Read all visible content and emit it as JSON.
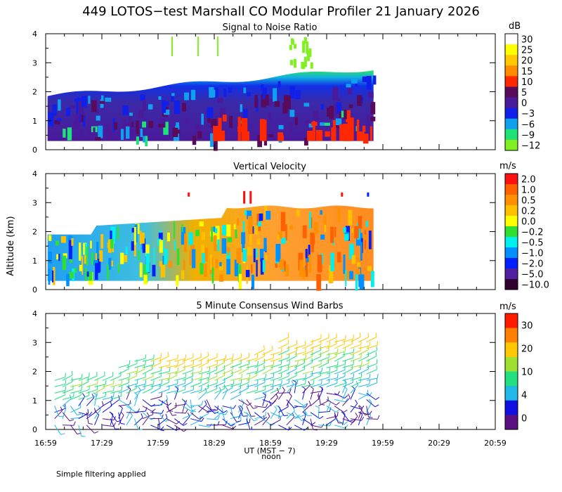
{
  "title": "449 LOTOS−test Marshall CO Modular Profiler 21 January 2026",
  "ylabel": "Altitude (km)",
  "xlabel": "UT  (MST − 7)",
  "xlabel2": "noon",
  "note": "Simple filtering applied",
  "x_ticks": [
    "16:59",
    "17:29",
    "17:59",
    "18:29",
    "18:59",
    "19:29",
    "19:59",
    "20:29",
    "20:59"
  ],
  "chart_data": [
    {
      "type": "heatmap",
      "title": "Signal to Noise Ratio",
      "colorbar_unit": "dB",
      "colorbar_labels": [
        "30",
        "25",
        "20",
        "15",
        "10",
        "5",
        "0",
        "−3",
        "−6",
        "−9",
        "−12"
      ],
      "colorbar_colors": [
        "#ffffff",
        "#ffff00",
        "#ffc800",
        "#ff8c00",
        "#ff2800",
        "#5a0a5a",
        "#4a1a9a",
        "#1020e8",
        "#10a0f0",
        "#20e078",
        "#80f020"
      ],
      "ylim": [
        0,
        4
      ],
      "yticks": [
        "0",
        "1",
        "2",
        "3",
        "4"
      ],
      "xlim": [
        "16:59",
        "20:59"
      ],
      "data_time_range": [
        "17:00",
        "19:54"
      ],
      "data_altitude_range": [
        0.3,
        2.9
      ]
    },
    {
      "type": "heatmap",
      "title": "Vertical Velocity",
      "colorbar_unit": "m/s",
      "colorbar_labels": [
        "2.0",
        "1.0",
        "0.5",
        "0.2",
        "0.0",
        "−0.2",
        "−0.5",
        "−1.0",
        "−2.0",
        "−5.0",
        "−10.0"
      ],
      "colorbar_colors": [
        "#ff1010",
        "#ff6000",
        "#ff9000",
        "#ffc000",
        "#ffff00",
        "#30e030",
        "#00f0f0",
        "#0090ff",
        "#0020ff",
        "#5020a0",
        "#300030"
      ],
      "ylim": [
        0,
        4
      ],
      "yticks": [
        "0",
        "1",
        "2",
        "3",
        "4"
      ],
      "xlim": [
        "16:59",
        "20:59"
      ],
      "data_time_range": [
        "17:00",
        "19:54"
      ],
      "data_altitude_range": [
        0.3,
        3.3
      ]
    },
    {
      "type": "scatter",
      "title": "5 Minute Consensus Wind Barbs",
      "colorbar_unit": "m/s",
      "colorbar_labels": [
        "30",
        "20",
        "10",
        "4",
        "0"
      ],
      "colorbar_colors": [
        "#ff1a00",
        "#ff7f00",
        "#ffc800",
        "#a0e030",
        "#20e080",
        "#20b8e8",
        "#1010e0",
        "#5a1080"
      ],
      "ylim": [
        0,
        4
      ],
      "yticks": [
        "0",
        "1",
        "2",
        "3",
        "4"
      ],
      "xlim": [
        "16:59",
        "20:59"
      ],
      "data_time_range": [
        "17:00",
        "19:54"
      ],
      "data_altitude_range": [
        0.1,
        3.2
      ]
    }
  ]
}
